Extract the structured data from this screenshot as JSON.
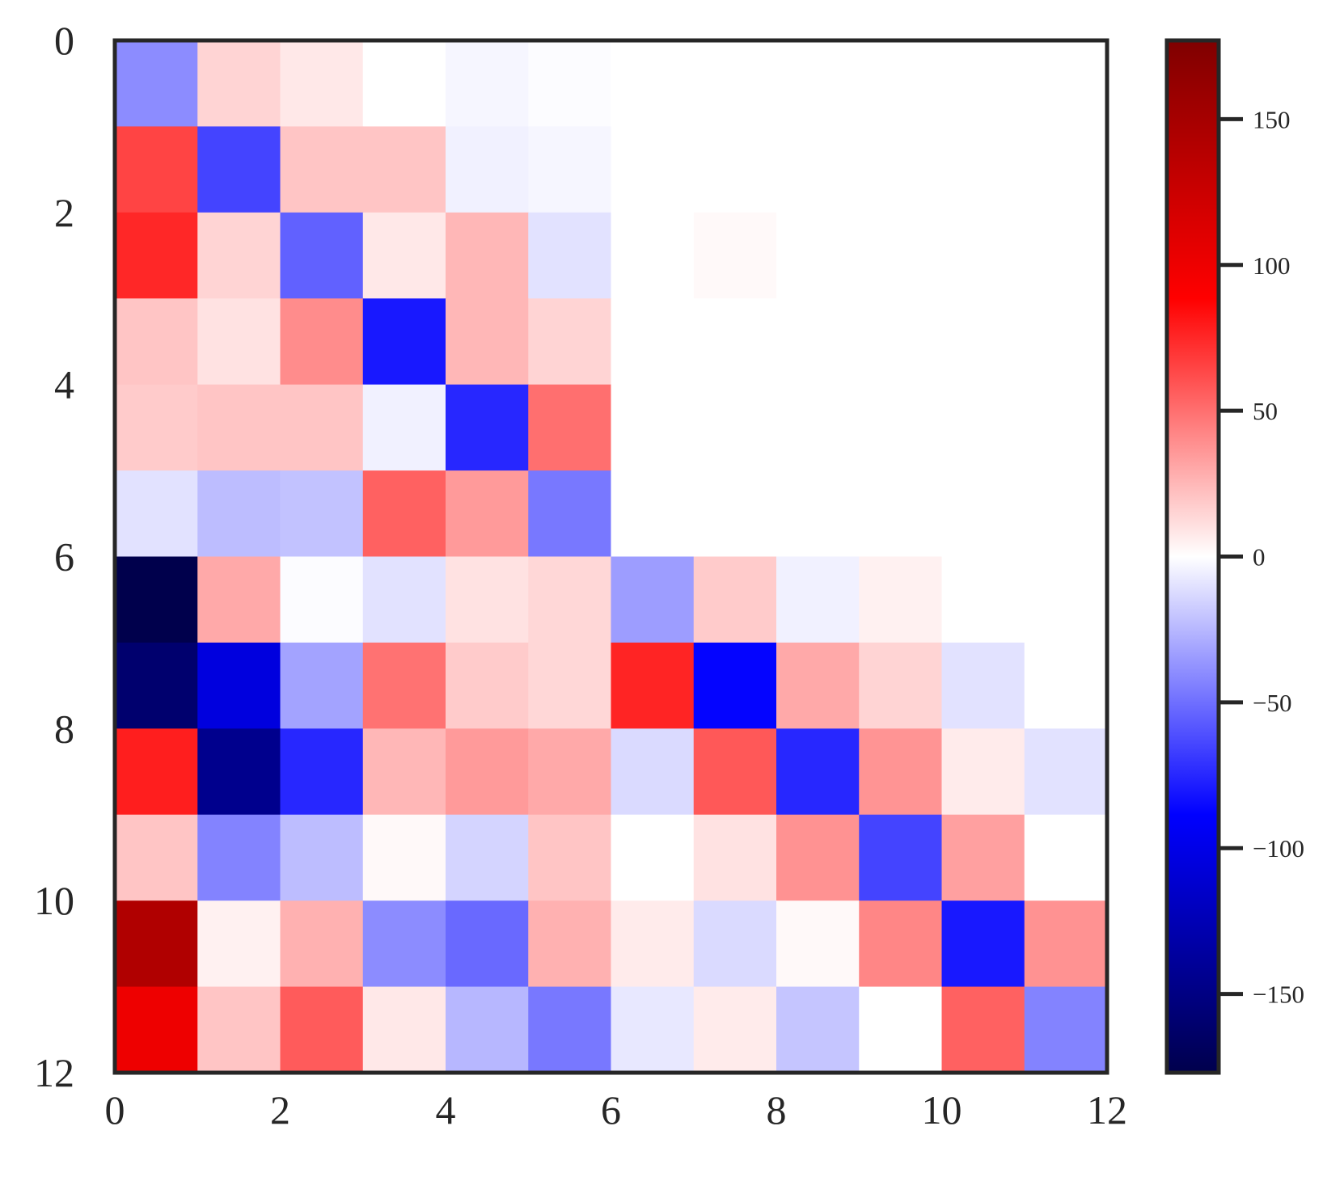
{
  "chart_data": {
    "type": "heatmap",
    "title": "",
    "xlabel": "",
    "ylabel": "",
    "colormap": "seismic",
    "colors": {
      "frame": "#262626",
      "low": "#00004c",
      "mid": "#ffffff",
      "high": "#7f0000"
    },
    "x_range": [
      0,
      12
    ],
    "y_range": [
      0,
      12
    ],
    "x_ticks": [
      0,
      2,
      4,
      6,
      8,
      10,
      12
    ],
    "y_ticks": [
      0,
      2,
      4,
      6,
      8,
      10,
      12
    ],
    "x_tick_labels": [
      "0",
      "2",
      "4",
      "6",
      "8",
      "10",
      "12"
    ],
    "y_tick_labels": [
      "0",
      "2",
      "4",
      "6",
      "8",
      "10",
      "12"
    ],
    "colorbar": {
      "vmin": -177,
      "vmax": 177,
      "ticks": [
        150,
        100,
        50,
        0,
        -50,
        -100,
        -150
      ],
      "tick_labels": [
        "150",
        "100",
        "50",
        "0",
        "−50",
        "−100",
        "−150"
      ]
    },
    "grid": false,
    "values": [
      [
        -40,
        15,
        8,
        0,
        -3,
        -1,
        0,
        0,
        0,
        0,
        0,
        0
      ],
      [
        65,
        -65,
        20,
        20,
        -5,
        -3,
        0,
        0,
        0,
        0,
        0,
        0
      ],
      [
        75,
        15,
        -55,
        8,
        25,
        -10,
        0,
        2,
        0,
        0,
        0,
        0
      ],
      [
        20,
        10,
        40,
        -80,
        25,
        15,
        0,
        0,
        0,
        0,
        0,
        0
      ],
      [
        18,
        20,
        20,
        -5,
        -75,
        50,
        0,
        0,
        0,
        0,
        0,
        0
      ],
      [
        -10,
        -23,
        -21,
        55,
        35,
        -47,
        0,
        0,
        0,
        0,
        0,
        0
      ],
      [
        -177,
        30,
        -1,
        -10,
        10,
        14,
        -34,
        18,
        -5,
        5,
        0,
        0
      ],
      [
        -160,
        -105,
        -32,
        49,
        18,
        14,
        76,
        -87,
        30,
        15,
        -10,
        0
      ],
      [
        78,
        -145,
        -75,
        25,
        35,
        30,
        -13,
        58,
        -75,
        37,
        7,
        -10
      ],
      [
        20,
        -43,
        -23,
        2,
        -15,
        20,
        0,
        10,
        38,
        -65,
        33,
        0
      ],
      [
        143,
        5,
        27,
        -40,
        -52,
        27,
        7,
        -13,
        2,
        42,
        -80,
        38
      ],
      [
        100,
        20,
        57,
        8,
        -25,
        -47,
        -8,
        7,
        -20,
        0,
        55,
        -43
      ]
    ]
  }
}
